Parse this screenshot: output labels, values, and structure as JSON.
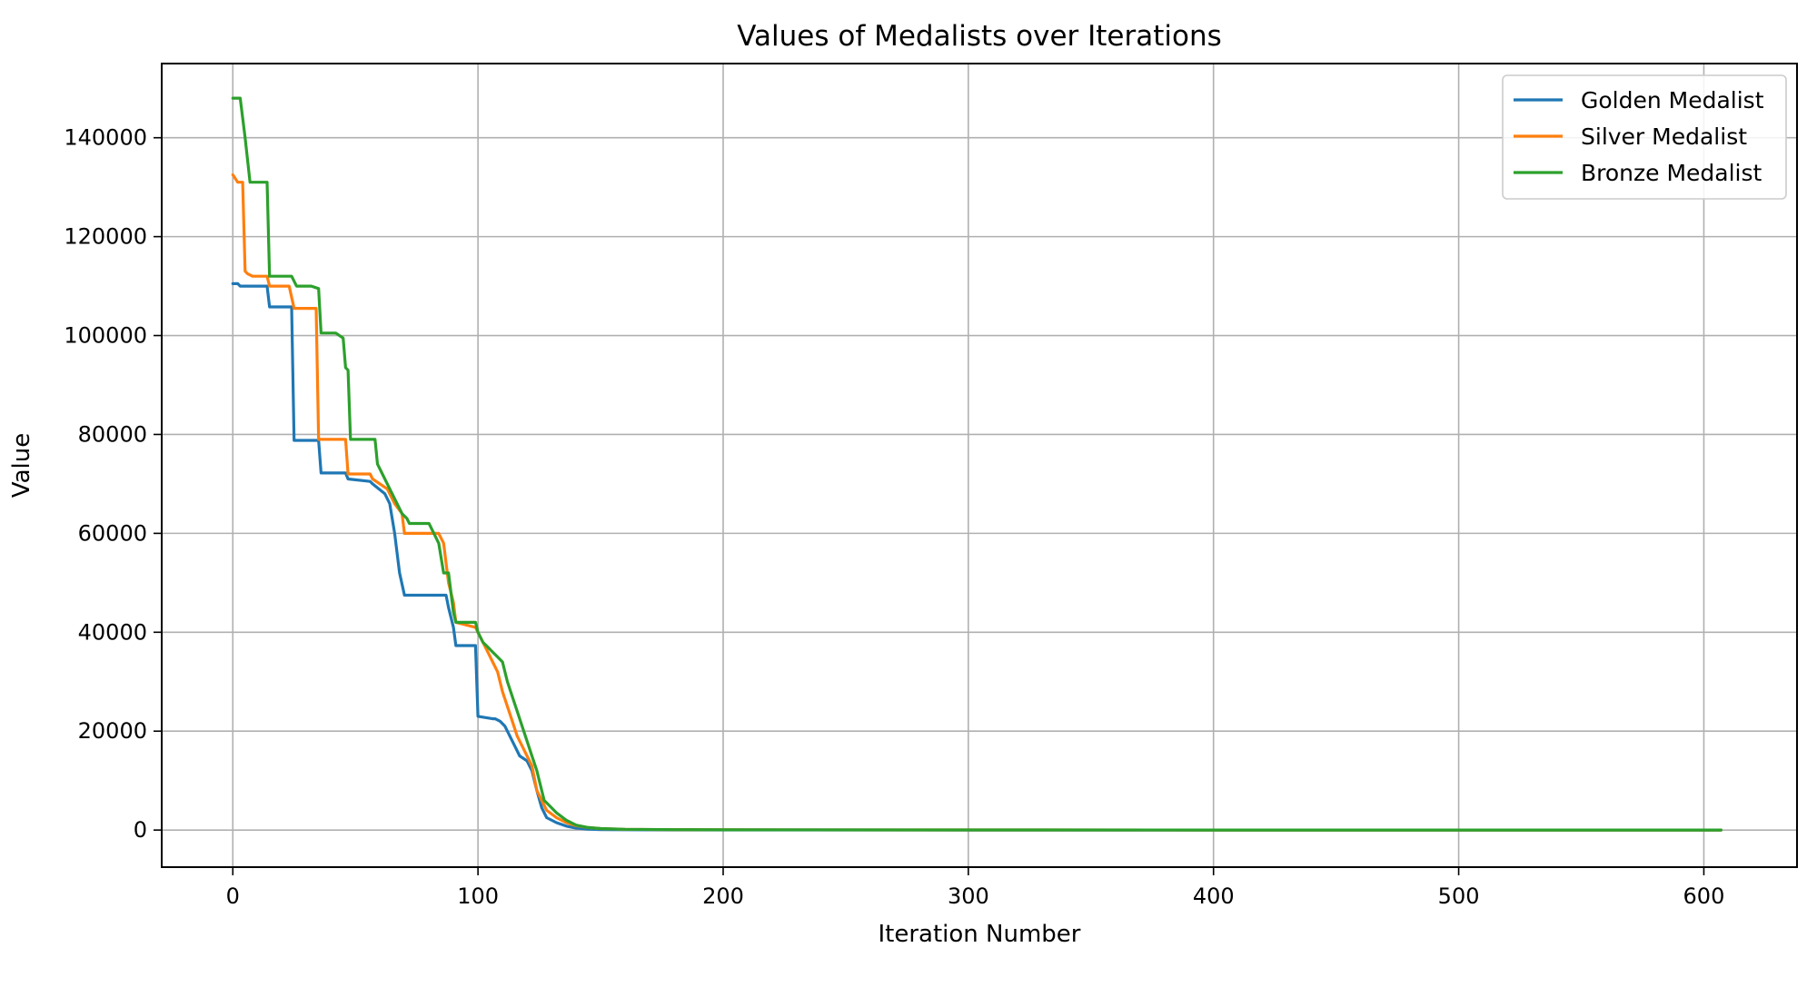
{
  "chart_data": {
    "type": "line",
    "title": "Values of Medalists over Iterations",
    "xlabel": "Iteration Number",
    "ylabel": "Value",
    "xlim": [
      -29,
      638
    ],
    "ylim": [
      -7500,
      155000
    ],
    "xticks": [
      0,
      100,
      200,
      300,
      400,
      500,
      600
    ],
    "yticks": [
      0,
      20000,
      40000,
      60000,
      80000,
      100000,
      120000,
      140000
    ],
    "grid": true,
    "legend_position": "top-right",
    "series": [
      {
        "name": "Golden Medalist",
        "color": "#1f77b4",
        "x": [
          0,
          2,
          3,
          14,
          15,
          24,
          25,
          35,
          36,
          46,
          47,
          56,
          57,
          62,
          64,
          66,
          68,
          70,
          80,
          87,
          88,
          90,
          91,
          99,
          100,
          106,
          107,
          109,
          111,
          113,
          115,
          117,
          120,
          122,
          124,
          126,
          128,
          132,
          136,
          140,
          145,
          150,
          160,
          180,
          200,
          300,
          400,
          500,
          607
        ],
        "y": [
          110500,
          110500,
          110000,
          110000,
          105800,
          105800,
          78800,
          78800,
          72200,
          72200,
          71000,
          70500,
          70000,
          68000,
          66000,
          60000,
          52000,
          47500,
          47500,
          47500,
          45000,
          41000,
          37300,
          37300,
          23000,
          22500,
          22500,
          22000,
          21000,
          19000,
          17000,
          15000,
          14000,
          12000,
          8000,
          4500,
          2500,
          1500,
          800,
          400,
          200,
          100,
          60,
          30,
          20,
          10,
          5,
          5,
          5
        ]
      },
      {
        "name": "Silver Medalist",
        "color": "#ff7f0e",
        "x": [
          0,
          2,
          4,
          5,
          6,
          8,
          14,
          15,
          23,
          25,
          34,
          35,
          46,
          47,
          56,
          57,
          63,
          66,
          69,
          70,
          84,
          86,
          88,
          90,
          91,
          99,
          101,
          104,
          106,
          108,
          110,
          112,
          114,
          116,
          118,
          120,
          122,
          124,
          126,
          128,
          132,
          136,
          140,
          145,
          150,
          160,
          180,
          200,
          300,
          400,
          500,
          607
        ],
        "y": [
          132500,
          131000,
          131000,
          113000,
          112500,
          112000,
          112000,
          110000,
          110000,
          105500,
          105500,
          79000,
          79000,
          72000,
          72000,
          71000,
          69000,
          66000,
          64000,
          60000,
          60000,
          58000,
          50000,
          46000,
          42000,
          41000,
          39000,
          36000,
          34000,
          32000,
          28000,
          25000,
          22000,
          19000,
          17000,
          15000,
          13000,
          8000,
          6000,
          4000,
          2500,
          1500,
          900,
          500,
          300,
          150,
          80,
          40,
          20,
          10,
          5,
          5
        ]
      },
      {
        "name": "Bronze Medalist",
        "color": "#2ca02c",
        "x": [
          0,
          3,
          5,
          7,
          14,
          15,
          24,
          26,
          32,
          35,
          36,
          42,
          45,
          46,
          47,
          48,
          58,
          59,
          61,
          63,
          65,
          67,
          69,
          71,
          72,
          74,
          80,
          82,
          84,
          86,
          88,
          90,
          91,
          99,
          100,
          102,
          104,
          106,
          108,
          110,
          112,
          114,
          116,
          118,
          120,
          122,
          124,
          125,
          127,
          129,
          132,
          136,
          140,
          145,
          150,
          160,
          180,
          200,
          300,
          400,
          500,
          607
        ],
        "y": [
          148000,
          148000,
          140000,
          131000,
          131000,
          112000,
          112000,
          110000,
          110000,
          109500,
          100500,
          100500,
          99500,
          93500,
          93000,
          79000,
          79000,
          74000,
          72000,
          70000,
          68000,
          66000,
          64000,
          63000,
          62000,
          62000,
          62000,
          60000,
          58000,
          52000,
          52000,
          44000,
          42000,
          42000,
          40000,
          38000,
          37000,
          36000,
          35000,
          34000,
          30000,
          27000,
          24000,
          21000,
          18000,
          15000,
          12000,
          10000,
          6000,
          5000,
          3500,
          2000,
          1000,
          500,
          300,
          150,
          80,
          40,
          20,
          10,
          5,
          5
        ]
      }
    ]
  }
}
